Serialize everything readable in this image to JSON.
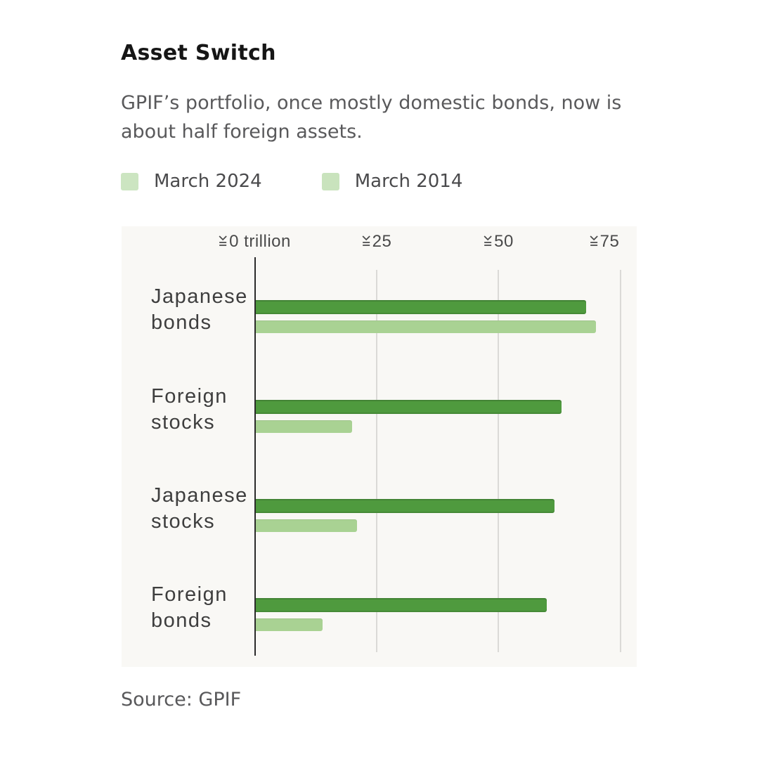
{
  "header": {
    "title": "Asset Switch",
    "subtitle": "GPIF’s portfolio, once mostly domestic bonds, now is about half foreign assets."
  },
  "legend": [
    {
      "label": "March 2024",
      "swatch_color": "#cce5c1"
    },
    {
      "label": "March 2014",
      "swatch_color": "#c9e3bd"
    }
  ],
  "chart_data": {
    "type": "bar",
    "orientation": "horizontal",
    "title": "Asset Switch",
    "unit": "trillion yen",
    "categories": [
      "Japanese bonds",
      "Foreign stocks",
      "Japanese stocks",
      "Foreign bonds"
    ],
    "series": [
      {
        "name": "March 2024",
        "color": "#4f9a3e",
        "values": [
          68,
          63,
          61.5,
          60
        ]
      },
      {
        "name": "March 2014",
        "color": "#a9d293",
        "values": [
          70,
          20,
          21,
          14
        ]
      }
    ],
    "x_ticks": [
      {
        "symbol": "¥",
        "label": "0 trillion",
        "value": 0
      },
      {
        "symbol": "¥",
        "label": "25",
        "value": 25
      },
      {
        "symbol": "¥",
        "label": "50",
        "value": 50
      },
      {
        "symbol": "¥",
        "label": "75",
        "value": 75
      }
    ],
    "xlim": [
      0,
      78
    ],
    "grid": true,
    "legend_position": "top"
  },
  "source": {
    "label": "Source: GPIF"
  }
}
